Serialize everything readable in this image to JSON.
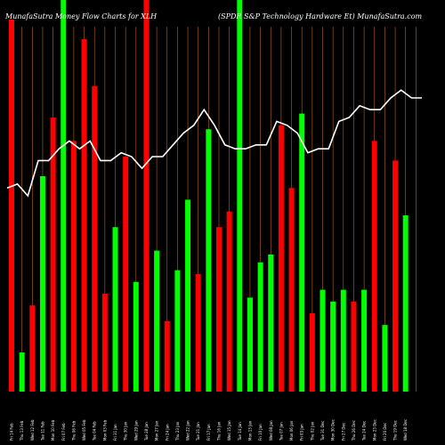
{
  "title_left": "MunafaSutra  Money Flow  Charts for XLH",
  "title_right": "(SPDR S&P Technology Hardware   Et) MunafaSutra.com",
  "chart_data": {
    "type": "bar",
    "ylim": [
      0,
      100
    ],
    "grid": "vertical orange lines",
    "colors": {
      "up": "#00ff00",
      "down": "#ff0000",
      "line": "#ffffff",
      "grid": "#b5651d",
      "background": "#000000"
    },
    "bars": [
      {
        "date": "Fri 14 Feb",
        "dir": "down",
        "value": 95
      },
      {
        "date": "Thu 13 Feb",
        "dir": "up",
        "value": 10
      },
      {
        "date": "Wed 12 Feb",
        "dir": "down",
        "value": 22
      },
      {
        "date": "Tue 11 Feb",
        "dir": "up",
        "value": 55
      },
      {
        "date": "Mon 10 Feb",
        "dir": "down",
        "value": 70
      },
      {
        "date": "Fri 07 Feb",
        "dir": "up",
        "value": 100
      },
      {
        "date": "Thu 06 Feb",
        "dir": "down",
        "value": 64
      },
      {
        "date": "Wed 05 Feb",
        "dir": "down",
        "value": 90
      },
      {
        "date": "Tue 04 Feb",
        "dir": "down",
        "value": 78
      },
      {
        "date": "Mon 03 Feb",
        "dir": "down",
        "value": 25
      },
      {
        "date": "Fri 31 Jan",
        "dir": "up",
        "value": 42
      },
      {
        "date": "Thu 30 Jan",
        "dir": "down",
        "value": 60
      },
      {
        "date": "Wed 29 Jan",
        "dir": "up",
        "value": 28
      },
      {
        "date": "Tue 28 Jan",
        "dir": "down",
        "value": 100
      },
      {
        "date": "Mon 27 Jan",
        "dir": "up",
        "value": 36
      },
      {
        "date": "Fri 24 Jan",
        "dir": "down",
        "value": 18
      },
      {
        "date": "Thu 23 Jan",
        "dir": "up",
        "value": 31
      },
      {
        "date": "Wed 22 Jan",
        "dir": "up",
        "value": 49
      },
      {
        "date": "Tue 21 Jan",
        "dir": "down",
        "value": 30
      },
      {
        "date": "Fri 17 Jan",
        "dir": "up",
        "value": 67
      },
      {
        "date": "Thu 16 Jan",
        "dir": "down",
        "value": 42
      },
      {
        "date": "Wed 15 Jan",
        "dir": "down",
        "value": 46
      },
      {
        "date": "Tue 14 Jan",
        "dir": "up",
        "value": 100
      },
      {
        "date": "Mon 13 Jan",
        "dir": "up",
        "value": 24
      },
      {
        "date": "Fri 10 Jan",
        "dir": "up",
        "value": 33
      },
      {
        "date": "Wed 08 Jan",
        "dir": "up",
        "value": 35
      },
      {
        "date": "Tue 07 Jan",
        "dir": "down",
        "value": 68
      },
      {
        "date": "Mon 06 Jan",
        "dir": "down",
        "value": 52
      },
      {
        "date": "Fri 03 Jan",
        "dir": "up",
        "value": 71
      },
      {
        "date": "Thu 02 Jan",
        "dir": "down",
        "value": 20
      },
      {
        "date": "Tue 31 Dec",
        "dir": "up",
        "value": 26
      },
      {
        "date": "Mon 30 Dec",
        "dir": "up",
        "value": 23
      },
      {
        "date": "Fri 27 Dec",
        "dir": "up",
        "value": 26
      },
      {
        "date": "Thu 26 Dec",
        "dir": "down",
        "value": 23
      },
      {
        "date": "Tue 24 Dec",
        "dir": "up",
        "value": 26
      },
      {
        "date": "Mon 23 Dec",
        "dir": "down",
        "value": 64
      },
      {
        "date": "Fri 20 Dec",
        "dir": "up",
        "value": 17
      },
      {
        "date": "Thu 19 Dec",
        "dir": "down",
        "value": 59
      },
      {
        "date": "Wed 18 Dec",
        "dir": "up",
        "value": 45
      }
    ],
    "line": [
      52,
      53,
      50,
      59,
      59,
      62,
      64,
      62,
      64,
      59,
      59,
      61,
      60,
      57,
      60,
      60,
      63,
      66,
      68,
      72,
      68,
      63,
      62,
      62,
      63,
      63,
      69,
      68,
      66,
      61,
      62,
      62,
      69,
      70,
      73,
      72,
      72,
      75,
      77,
      75,
      75
    ]
  }
}
